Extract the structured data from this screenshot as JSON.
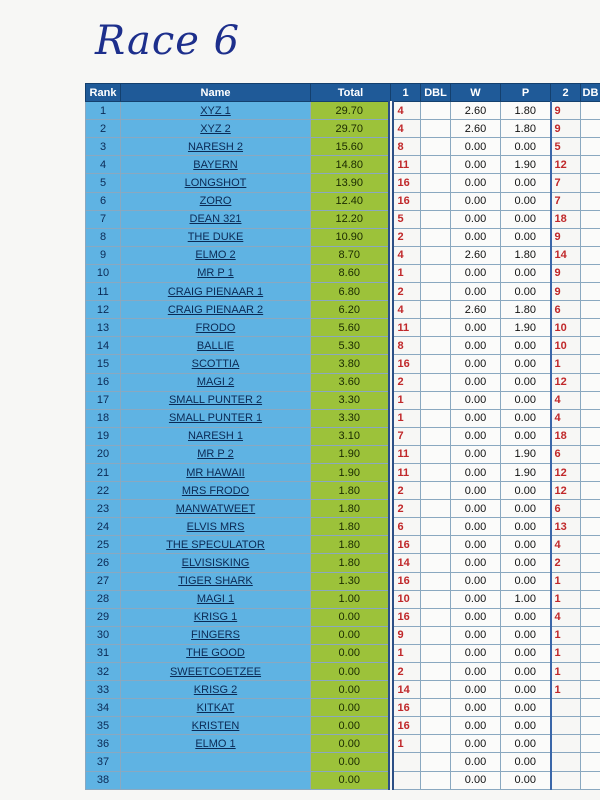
{
  "title": "Race 6",
  "table": {
    "header": [
      "Rank",
      "Name",
      "Total",
      "1",
      "DBL",
      "W",
      "P",
      "2",
      "DB"
    ],
    "rows": [
      [
        "1",
        "XYZ 1",
        "29.70",
        "4",
        null,
        "2.60",
        "1.80",
        "9"
      ],
      [
        "2",
        "XYZ 2",
        "29.70",
        "4",
        null,
        "2.60",
        "1.80",
        "9"
      ],
      [
        "3",
        "NARESH 2",
        "15.60",
        "8",
        null,
        "0.00",
        "0.00",
        "5"
      ],
      [
        "4",
        "BAYERN",
        "14.80",
        "11",
        null,
        "0.00",
        "1.90",
        "12"
      ],
      [
        "5",
        "LONGSHOT",
        "13.90",
        "16",
        null,
        "0.00",
        "0.00",
        "7"
      ],
      [
        "6",
        "ZORO",
        "12.40",
        "16",
        null,
        "0.00",
        "0.00",
        "7"
      ],
      [
        "7",
        "DEAN 321",
        "12.20",
        "5",
        null,
        "0.00",
        "0.00",
        "18"
      ],
      [
        "8",
        "THE DUKE",
        "10.90",
        "2",
        null,
        "0.00",
        "0.00",
        "9"
      ],
      [
        "9",
        "ELMO 2",
        "8.70",
        "4",
        null,
        "2.60",
        "1.80",
        "14"
      ],
      [
        "10",
        "MR P 1",
        "8.60",
        "1",
        null,
        "0.00",
        "0.00",
        "9"
      ],
      [
        "11",
        "CRAIG PIENAAR 1",
        "6.80",
        "2",
        null,
        "0.00",
        "0.00",
        "9"
      ],
      [
        "12",
        "CRAIG PIENAAR 2",
        "6.20",
        "4",
        null,
        "2.60",
        "1.80",
        "6"
      ],
      [
        "13",
        "FRODO",
        "5.60",
        "11",
        null,
        "0.00",
        "1.90",
        "10"
      ],
      [
        "14",
        "BALLIE",
        "5.30",
        "8",
        null,
        "0.00",
        "0.00",
        "10"
      ],
      [
        "15",
        "SCOTTIA",
        "3.80",
        "16",
        null,
        "0.00",
        "0.00",
        "1"
      ],
      [
        "16",
        "MAGI 2",
        "3.60",
        "2",
        null,
        "0.00",
        "0.00",
        "12"
      ],
      [
        "17",
        "SMALL PUNTER 2",
        "3.30",
        "1",
        null,
        "0.00",
        "0.00",
        "4"
      ],
      [
        "18",
        "SMALL PUNTER 1",
        "3.30",
        "1",
        null,
        "0.00",
        "0.00",
        "4"
      ],
      [
        "19",
        "NARESH 1",
        "3.10",
        "7",
        null,
        "0.00",
        "0.00",
        "18"
      ],
      [
        "20",
        "MR P 2",
        "1.90",
        "11",
        null,
        "0.00",
        "1.90",
        "6"
      ],
      [
        "21",
        "MR HAWAII",
        "1.90",
        "11",
        null,
        "0.00",
        "1.90",
        "12"
      ],
      [
        "22",
        "MRS FRODO",
        "1.80",
        "2",
        null,
        "0.00",
        "0.00",
        "12"
      ],
      [
        "23",
        "MANWATWEET",
        "1.80",
        "2",
        null,
        "0.00",
        "0.00",
        "6"
      ],
      [
        "24",
        "ELVIS MRS",
        "1.80",
        "6",
        null,
        "0.00",
        "0.00",
        "13"
      ],
      [
        "25",
        "THE SPECULATOR",
        "1.80",
        "16",
        null,
        "0.00",
        "0.00",
        "4"
      ],
      [
        "26",
        "ELVISISKING",
        "1.80",
        "14",
        null,
        "0.00",
        "0.00",
        "2"
      ],
      [
        "27",
        "TIGER SHARK",
        "1.30",
        "16",
        null,
        "0.00",
        "0.00",
        "1"
      ],
      [
        "28",
        "MAGI 1",
        "1.00",
        "10",
        null,
        "0.00",
        "1.00",
        "1"
      ],
      [
        "29",
        "KRISG 1",
        "0.00",
        "16",
        null,
        "0.00",
        "0.00",
        "4"
      ],
      [
        "30",
        "FINGERS",
        "0.00",
        "9",
        null,
        "0.00",
        "0.00",
        "1"
      ],
      [
        "31",
        "THE GOOD",
        "0.00",
        "1",
        null,
        "0.00",
        "0.00",
        "1"
      ],
      [
        "32",
        "SWEETCOETZEE",
        "0.00",
        "2",
        null,
        "0.00",
        "0.00",
        "1"
      ],
      [
        "33",
        "KRISG 2",
        "0.00",
        "14",
        null,
        "0.00",
        "0.00",
        "1"
      ],
      [
        "34",
        "KITKAT",
        "0.00",
        "16",
        null,
        "0.00",
        "0.00",
        null
      ],
      [
        "35",
        "KRISTEN",
        "0.00",
        "16",
        null,
        "0.00",
        "0.00",
        null
      ],
      [
        "36",
        "ELMO 1",
        "0.00",
        "1",
        null,
        "0.00",
        "0.00",
        null
      ],
      [
        "37",
        null,
        "0.00",
        null,
        null,
        "0.00",
        "0.00",
        null
      ],
      [
        "38",
        null,
        "0.00",
        null,
        null,
        "0.00",
        "0.00",
        null
      ]
    ]
  }
}
